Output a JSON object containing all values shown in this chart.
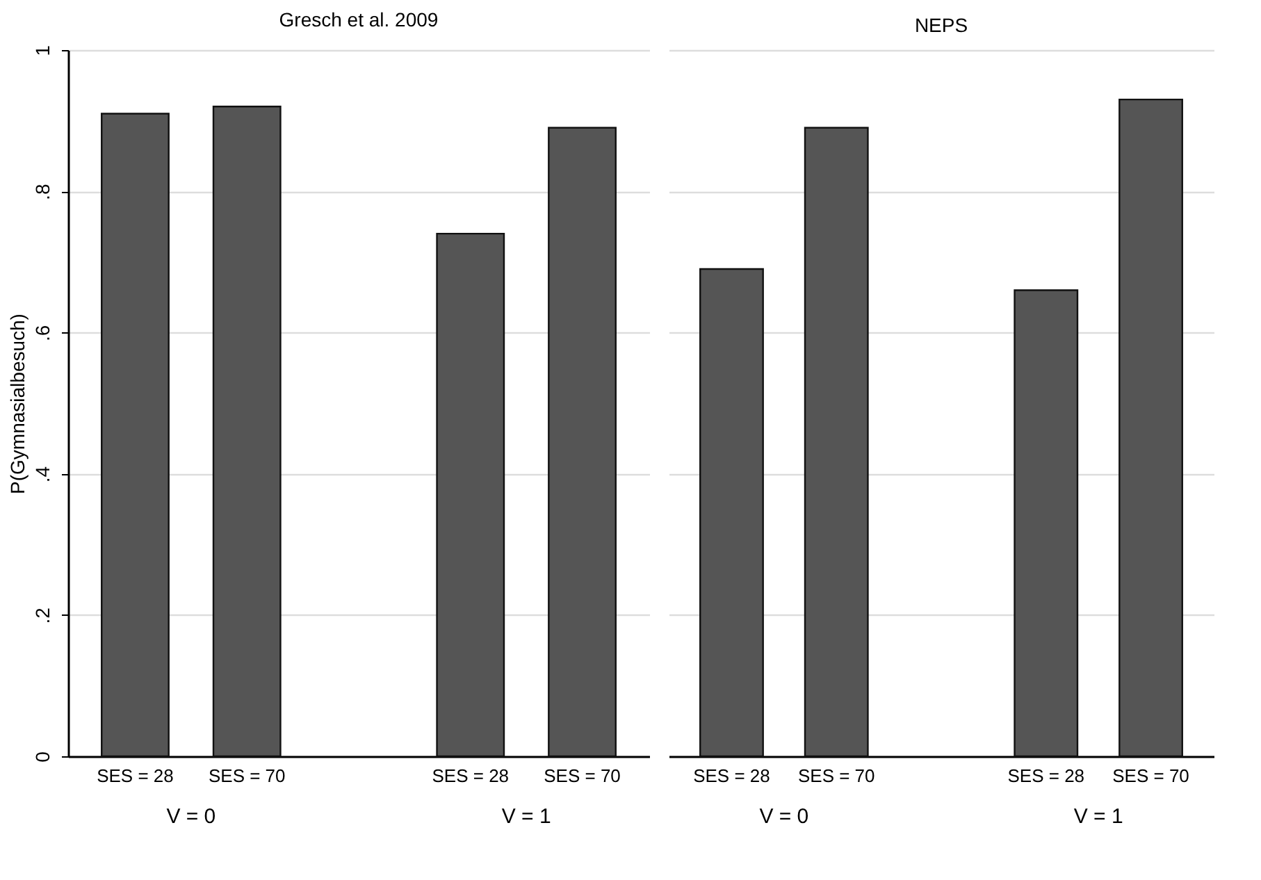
{
  "chart_data": [
    {
      "type": "bar",
      "title": "Gresch et al. 2009",
      "ylabel": "P(Gymnasialbesuch)",
      "categories": [
        "SES = 28",
        "SES = 70",
        null,
        "SES = 28",
        "SES = 70"
      ],
      "series": [
        {
          "color": "#555555",
          "values": [
            0.91,
            0.92,
            null,
            0.74,
            0.89
          ]
        }
      ],
      "ylim": [
        0,
        1
      ],
      "yticks": [
        0,
        {
          "value": 0.2,
          "label": ".2"
        },
        {
          "value": 0.4,
          "label": ".4"
        },
        {
          "value": 0.6,
          "label": ".6"
        },
        {
          "value": 0.8,
          "label": ".8"
        },
        1
      ],
      "grid": "y",
      "annotations": [
        "V = 0",
        "V = 1"
      ]
    },
    {
      "type": "bar",
      "title": "NEPS",
      "categories": [
        "SES = 28",
        "SES = 70",
        null,
        "SES = 28",
        "SES = 70"
      ],
      "series": [
        {
          "color": "#555555",
          "values": [
            0.69,
            0.89,
            null,
            0.66,
            0.93
          ]
        }
      ],
      "ylim": [
        0,
        1
      ],
      "yticks": [
        0,
        0.2,
        0.4,
        0.6,
        0.8,
        1
      ],
      "grid": "y",
      "tick_labels": "x",
      "annotations": [
        "V = 0",
        "V = 1"
      ]
    }
  ]
}
